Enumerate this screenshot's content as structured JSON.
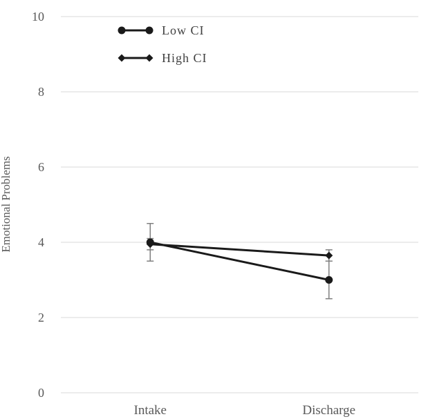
{
  "chart_data": {
    "type": "line",
    "title": "",
    "xlabel": "",
    "ylabel": "Emotional Problems",
    "categories": [
      "Intake",
      "Discharge"
    ],
    "ylim": [
      0,
      10
    ],
    "yticks": [
      "0",
      "2",
      "4",
      "6",
      "8",
      "10"
    ],
    "grid": true,
    "legend_position": "top-left",
    "series": [
      {
        "name": "Low CI",
        "marker": "circle",
        "values": [
          4.0,
          3.0
        ],
        "error_low": [
          3.5,
          2.5
        ],
        "error_high": [
          4.5,
          3.5
        ]
      },
      {
        "name": "High CI",
        "marker": "diamond",
        "values": [
          3.95,
          3.65
        ],
        "error_low": [
          3.8,
          3.5
        ],
        "error_high": [
          4.1,
          3.8
        ]
      }
    ],
    "colors": {
      "line": "#1a1a1a",
      "grid": "#d9d9d9",
      "error_bar": "#7f7f7f",
      "text": "#595959"
    }
  }
}
